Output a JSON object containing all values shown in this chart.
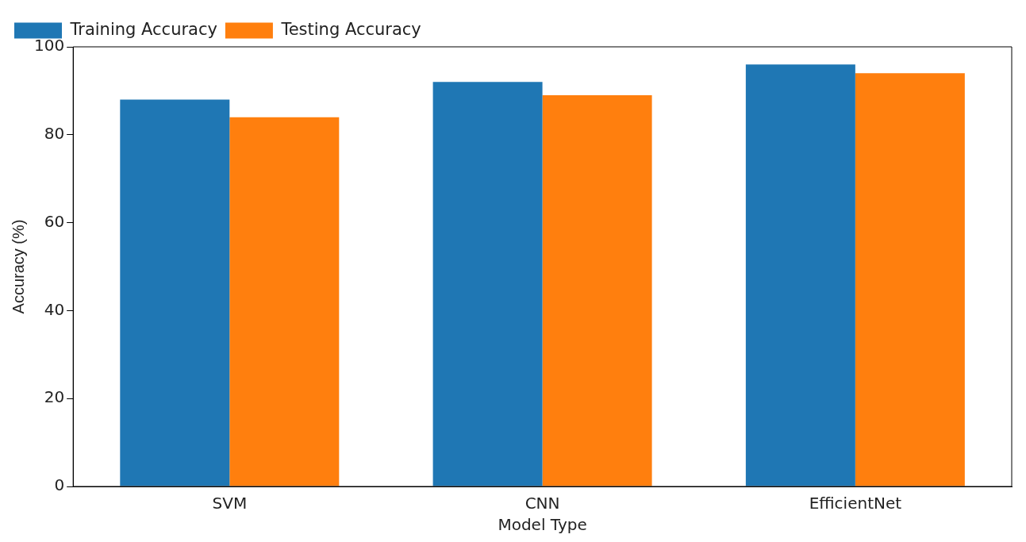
{
  "chart_data": {
    "type": "bar",
    "xlabel": "Model Type",
    "ylabel": "Accuracy (%)",
    "categories": [
      "SVM",
      "CNN",
      "EfficientNet"
    ],
    "series": [
      {
        "name": "Training Accuracy",
        "color": "#1f77b4",
        "values": [
          88,
          92,
          96
        ]
      },
      {
        "name": "Testing Accuracy",
        "color": "#ff7f0e",
        "values": [
          84,
          89,
          94
        ]
      }
    ],
    "ylim": [
      0,
      100
    ],
    "yticks": [
      0,
      20,
      40,
      60,
      80,
      100
    ],
    "grid": false,
    "legend": "top left"
  }
}
